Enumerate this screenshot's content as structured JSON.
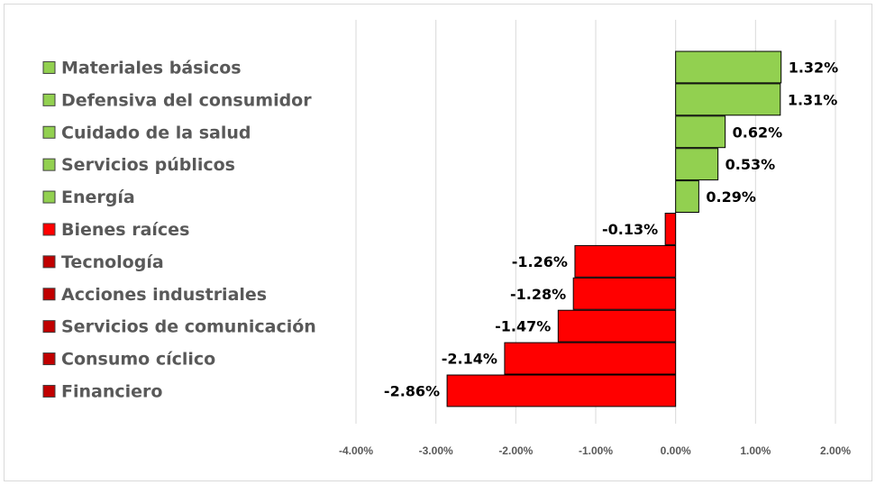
{
  "chart_data": {
    "type": "bar",
    "orientation": "horizontal",
    "categories": [
      "Materiales básicos",
      "Defensiva del consumidor",
      "Cuidado de la salud",
      "Servicios públicos",
      "Energía",
      "Bienes raíces",
      "Tecnología",
      "Acciones industriales",
      "Servicios de comunicación",
      "Consumo cíclico",
      "Financiero"
    ],
    "values": [
      1.32,
      1.31,
      0.62,
      0.53,
      0.29,
      -0.13,
      -1.26,
      -1.28,
      -1.47,
      -2.14,
      -2.86
    ],
    "data_labels": [
      "1.32%",
      "1.31%",
      "0.62%",
      "0.53%",
      "0.29%",
      "-0.13%",
      "-1.26%",
      "-1.28%",
      "-1.47%",
      "-2.14%",
      "-2.86%"
    ],
    "x_ticks": [
      "-4.00%",
      "-3.00%",
      "-2.00%",
      "-1.00%",
      "0.00%",
      "1.00%",
      "2.00%"
    ],
    "xlim": [
      -4,
      2
    ],
    "title": "",
    "xlabel": "",
    "ylabel": "",
    "grid": "vertical",
    "legend_position": "left",
    "colors": {
      "positive": "#92d050",
      "negative": "#ff0000",
      "bar_edge": "#000000",
      "legend_negative_alt": "#c00000",
      "gridline": "#d9d9d9",
      "text": "#595959"
    }
  }
}
